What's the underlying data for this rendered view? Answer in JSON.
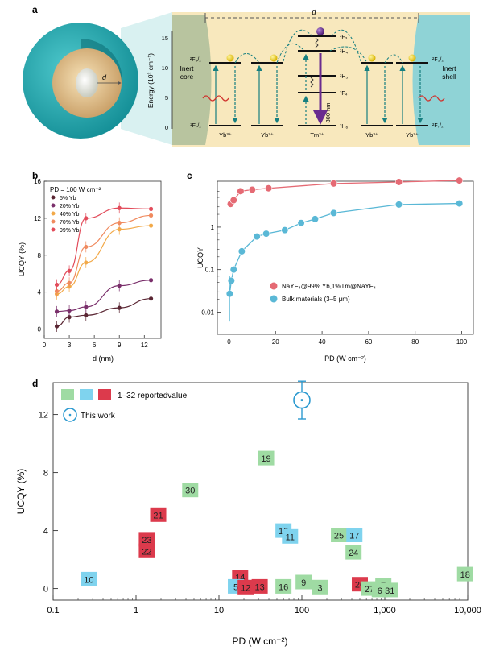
{
  "panel_a": {
    "label": "a",
    "sphere_d": "d",
    "gap_d": "d",
    "axis_label": "Energy (10³ cm⁻¹)",
    "ticks": [
      "0",
      "5",
      "10",
      "15"
    ],
    "inert_core": [
      "Inert",
      "core"
    ],
    "inert_shell": [
      "Inert",
      "shell"
    ],
    "yb_levels": {
      "upper": "²F₅/₂",
      "lower": "²F₇/₂"
    },
    "tm_levels": [
      "³F₃",
      "³H₄",
      "³H₅",
      "³F₄",
      "³H₆"
    ],
    "ion_labels": [
      "Yb³⁺",
      "Yb³⁺",
      "Tm³⁺",
      "Yb³⁺",
      "Yb³⁺"
    ],
    "emission": "800 nm",
    "colors": {
      "core": "#b8c49f",
      "shell": "#8fd3d6",
      "band": "#f8e8bd",
      "emission": "#6a2b8f",
      "arrow": "#167f80",
      "laser": "#d0332e"
    }
  },
  "panel_b": {
    "label": "b",
    "annotation": "PD = 100 W cm⁻²",
    "chart_data": {
      "type": "scatter",
      "title": "",
      "xlabel": "d (nm)",
      "ylabel": "UCQY (%)",
      "xlim": [
        0,
        14
      ],
      "ylim": [
        -1,
        16
      ],
      "xticks": [
        0,
        3,
        6,
        9,
        12
      ],
      "yticks": [
        0,
        4,
        8,
        12,
        16
      ],
      "x": [
        1.5,
        3,
        5,
        9,
        12.8
      ],
      "series": [
        {
          "name": "5% Yb",
          "values": [
            0.3,
            1.3,
            1.5,
            2.3,
            3.3
          ],
          "color": "#5a2633"
        },
        {
          "name": "20% Yb",
          "values": [
            1.9,
            2.0,
            2.4,
            4.7,
            5.3
          ],
          "color": "#7a2f6b"
        },
        {
          "name": "40% Yb",
          "values": [
            3.8,
            4.6,
            7.2,
            10.8,
            11.2
          ],
          "color": "#f2a948"
        },
        {
          "name": "70% Yb",
          "values": [
            4.1,
            5.0,
            8.9,
            11.5,
            12.3
          ],
          "color": "#f08a5e"
        },
        {
          "name": "99% Yb",
          "values": [
            4.8,
            6.3,
            12.0,
            13.1,
            13.0
          ],
          "color": "#e24b5a"
        }
      ]
    }
  },
  "panel_c": {
    "label": "c",
    "chart_data": {
      "type": "scatter",
      "xlabel": "PD (W cm⁻²)",
      "ylabel": "UCQY",
      "xlim": [
        -5,
        105
      ],
      "xticks": [
        0,
        20,
        40,
        60,
        80,
        100
      ],
      "yscale": "log",
      "ylim": [
        0.003,
        12
      ],
      "yticks": [
        0.01,
        0.1,
        1
      ],
      "ytick_labels": [
        "0.01",
        "0.1",
        "1"
      ],
      "series": [
        {
          "name": "NaYF₄@99% Yb,1%Tm@NaYF₄",
          "color": "#e56a74",
          "x": [
            0.7,
            2,
            5,
            10,
            17,
            45,
            73,
            99
          ],
          "y": [
            3.5,
            4.3,
            7.0,
            7.6,
            8.2,
            10.6,
            11.5,
            12.5
          ]
        },
        {
          "name": "Bulk materials (3–5 μm)",
          "color": "#5ab8d6",
          "x": [
            0.3,
            1,
            2,
            5.5,
            12,
            16,
            24,
            31,
            37,
            45,
            73,
            99
          ],
          "y": [
            0.027,
            0.055,
            0.1,
            0.27,
            0.6,
            0.7,
            0.85,
            1.25,
            1.55,
            2.15,
            3.4,
            3.6
          ]
        }
      ]
    }
  },
  "panel_d": {
    "label": "d",
    "legend_reported": "1–32 reportedvalue",
    "legend_this_work": "This work",
    "chart_data": {
      "type": "scatter",
      "xlabel": "PD (W cm⁻²)",
      "ylabel": "UCQY (%)",
      "xscale": "log",
      "xlim": [
        0.1,
        10000
      ],
      "xticks": [
        0.1,
        1,
        10,
        100,
        1000,
        10000
      ],
      "xtick_labels": [
        "0.1",
        "1",
        "10",
        "100",
        "1,000",
        "10,000"
      ],
      "ylim": [
        -0.8,
        14.2
      ],
      "yticks": [
        0,
        4,
        8,
        12
      ],
      "this_work": {
        "x": 100,
        "y": 13.0,
        "err": 1.3
      },
      "points": [
        {
          "label": "19",
          "x": 37,
          "y": 9.0,
          "group": "green"
        },
        {
          "label": "30",
          "x": 4.5,
          "y": 6.8,
          "group": "green"
        },
        {
          "label": "21",
          "x": 1.85,
          "y": 5.1,
          "group": "red"
        },
        {
          "label": "23",
          "x": 1.35,
          "y": 3.4,
          "group": "red"
        },
        {
          "label": "22",
          "x": 1.35,
          "y": 2.6,
          "group": "red"
        },
        {
          "label": "15",
          "x": 60,
          "y": 4.0,
          "group": "blue"
        },
        {
          "label": "11",
          "x": 72,
          "y": 3.6,
          "group": "blue"
        },
        {
          "label": "25",
          "x": 280,
          "y": 3.7,
          "group": "green"
        },
        {
          "label": "17",
          "x": 430,
          "y": 3.7,
          "group": "blue"
        },
        {
          "label": "24",
          "x": 420,
          "y": 2.5,
          "group": "green"
        },
        {
          "label": "10",
          "x": 0.27,
          "y": 0.65,
          "group": "blue"
        },
        {
          "label": "14",
          "x": 18,
          "y": 0.8,
          "group": "red"
        },
        {
          "label": "5",
          "x": 16,
          "y": 0.15,
          "group": "blue"
        },
        {
          "label": "12",
          "x": 21,
          "y": 0.1,
          "group": "red"
        },
        {
          "label": "13",
          "x": 31,
          "y": 0.15,
          "group": "red"
        },
        {
          "label": "16",
          "x": 60,
          "y": 0.15,
          "group": "green"
        },
        {
          "label": "9",
          "x": 105,
          "y": 0.45,
          "group": "green"
        },
        {
          "label": "3",
          "x": 165,
          "y": 0.1,
          "group": "green"
        },
        {
          "label": "26",
          "x": 500,
          "y": 0.3,
          "group": "red"
        },
        {
          "label": "27",
          "x": 650,
          "y": 0.0,
          "group": "green"
        },
        {
          "label": "7",
          "x": 960,
          "y": 0.25,
          "group": "green"
        },
        {
          "label": "6",
          "x": 870,
          "y": -0.1,
          "group": "green"
        },
        {
          "label": "31",
          "x": 1150,
          "y": -0.1,
          "group": "green"
        },
        {
          "label": "18",
          "x": 9300,
          "y": 1.0,
          "group": "green"
        }
      ],
      "colors": {
        "green": "#9fdba3",
        "blue": "#7fd3ee",
        "red": "#dc3a4c",
        "this_work": "#2c9ad0"
      }
    }
  }
}
